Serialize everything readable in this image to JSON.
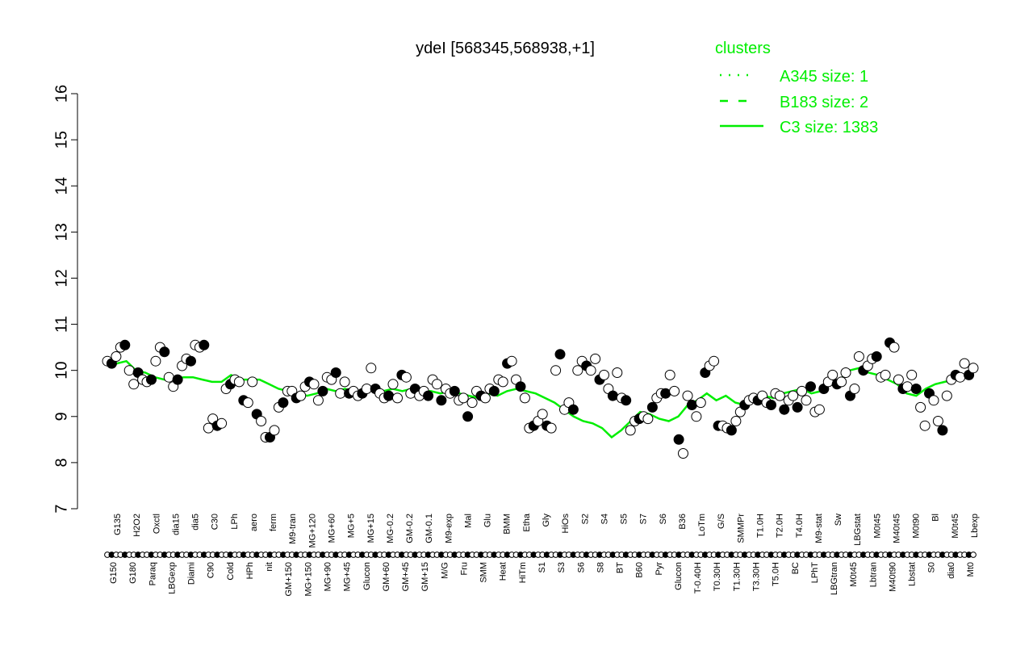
{
  "colors": {
    "background": "#ffffff",
    "axis": "#000000",
    "cluster_line": "#00ee00",
    "legend_text": "#00ee00",
    "point_fill_dark": "#000000",
    "point_fill_light": "#ffffff"
  },
  "chart_data": {
    "type": "line",
    "title": "ydeI [568345,568938,+1]",
    "ylim": [
      7,
      16
    ],
    "yticks": [
      "7",
      "8",
      "9",
      "10",
      "11",
      "12",
      "13",
      "14",
      "15",
      "16"
    ],
    "grid": false,
    "legend": {
      "position": "top-right",
      "title": "clusters",
      "entries": [
        {
          "label": "A345 size: 1",
          "style": "dotted"
        },
        {
          "label": "B183 size: 2",
          "style": "dashed"
        },
        {
          "label": "C3 size: 1383",
          "style": "solid"
        }
      ]
    },
    "xlabels_upper": [
      "G135",
      "H2O2",
      "Oxctl",
      "dia15",
      "dia5",
      "C30",
      "LPh",
      "aero",
      "ferm",
      "M9-tran",
      "MG+120",
      "MG+60",
      "MG+5",
      "MG+15",
      "MG-0.2",
      "GM-0.2",
      "GM-0.1",
      "M9-exp",
      "Mal",
      "Glu",
      "BMM",
      "Etha",
      "Gly",
      "HiOs",
      "S2",
      "S4",
      "S5",
      "S7",
      "S6",
      "B36",
      "LoTm",
      "G/S",
      "SMMPr",
      "T1.0H",
      "T2.0H",
      "T4.0H",
      "M9-stat",
      "Sw",
      "LBGstat",
      "M0t45",
      "M40t45",
      "M0t90",
      "Bl",
      "M0t45",
      "Lbexp"
    ],
    "xlabels_lower": [
      "G150",
      "G180",
      "Paraq",
      "LBGexp",
      "Diami",
      "C90",
      "Cold",
      "HPh",
      "nit",
      "GM+150",
      "MG+150",
      "MG+90",
      "MG+45",
      "Glucon",
      "GM+60",
      "GM+45",
      "GM+15",
      "M/G",
      "Fru",
      "SMM",
      "Heat",
      "HiTm",
      "S1",
      "S3",
      "S6",
      "S8",
      "BT",
      "B60",
      "Pyr",
      "Glucon",
      "T-0.40H",
      "T0.30H",
      "T1.30H",
      "T3.30H",
      "T5.0H",
      "BC",
      "LPhT",
      "LBGtran",
      "M0t45",
      "Lbtran",
      "M40t90",
      "Lbstat",
      "S0",
      "dia0",
      "Mt0"
    ],
    "series": [
      {
        "name": "",
        "style": "points",
        "values": [
          10.2,
          10.15,
          10.3,
          10.5,
          10.55,
          10.0,
          9.7,
          9.95,
          9.8,
          9.75,
          9.8,
          10.2,
          10.5,
          10.4,
          9.85,
          9.65,
          9.8,
          10.1,
          10.25,
          10.2,
          10.55,
          10.5,
          10.55,
          8.75,
          8.95,
          8.8,
          8.85,
          9.6,
          9.7,
          9.8,
          9.75,
          9.35,
          9.3,
          9.75,
          9.05,
          8.9,
          8.55,
          8.55,
          8.7,
          9.2,
          9.3,
          9.55,
          9.55,
          9.4,
          9.45,
          9.65,
          9.75,
          9.7,
          9.35,
          9.55,
          9.85,
          9.8,
          9.95,
          9.5,
          9.75,
          9.5,
          9.55,
          9.45,
          9.5,
          9.6,
          10.05,
          9.6,
          9.5,
          9.4,
          9.45,
          9.7,
          9.4,
          9.9,
          9.85,
          9.5,
          9.6,
          9.45,
          9.55,
          9.45,
          9.8,
          9.7,
          9.35,
          9.6,
          9.5,
          9.55,
          9.35,
          9.4,
          9.0,
          9.3,
          9.55,
          9.45,
          9.4,
          9.6,
          9.55,
          9.8,
          9.75,
          10.15,
          10.2,
          9.8,
          9.65,
          9.4,
          8.75,
          8.8,
          8.9,
          9.05,
          8.8,
          8.75,
          10.0,
          10.35,
          9.15,
          9.3,
          9.15,
          10.0,
          10.2,
          10.1,
          10.0,
          10.25,
          9.8,
          9.9,
          9.6,
          9.45,
          9.95,
          9.4,
          9.35,
          8.7,
          8.9,
          8.95,
          9.0,
          8.95,
          9.2,
          9.4,
          9.5,
          9.5,
          9.9,
          9.55,
          8.5,
          8.2,
          9.45,
          9.25,
          9.0,
          9.3,
          9.95,
          10.1,
          10.2,
          8.8,
          8.8,
          8.75,
          8.7,
          8.9,
          9.1,
          9.25,
          9.35,
          9.4,
          9.35,
          9.45,
          9.3,
          9.25,
          9.5,
          9.45,
          9.15,
          9.35,
          9.45,
          9.2,
          9.55,
          9.35,
          9.65,
          9.1,
          9.15,
          9.6,
          9.75,
          9.9,
          9.7,
          9.75,
          9.95,
          9.45,
          9.6,
          10.3,
          10.0,
          10.1,
          10.25,
          10.3,
          9.85,
          9.9,
          10.6,
          10.5,
          9.8,
          9.6,
          9.65,
          9.9,
          9.6,
          9.2,
          8.8,
          9.5,
          9.35,
          8.9,
          8.7,
          9.45,
          9.8,
          9.9,
          9.85,
          10.15,
          9.9,
          10.05
        ]
      },
      {
        "name": "C3 size: 1383",
        "style": "solid",
        "values": [
          10.15,
          10.15,
          10.2,
          10.0,
          9.95,
          9.85,
          9.8,
          9.8,
          9.85,
          9.85,
          9.8,
          9.75,
          9.75,
          9.9,
          9.8,
          9.8,
          9.8,
          9.7,
          9.6,
          9.55,
          9.5,
          9.45,
          9.5,
          9.6,
          9.55,
          9.6,
          9.5,
          9.6,
          9.55,
          9.55,
          9.6,
          9.55,
          9.6,
          9.55,
          9.55,
          9.5,
          9.55,
          9.5,
          9.45,
          9.4,
          9.5,
          9.45,
          9.55,
          9.6,
          9.55,
          9.5,
          9.4,
          9.3,
          9.15,
          9.0,
          8.9,
          8.85,
          8.75,
          8.55,
          8.7,
          8.9,
          9.1,
          9.05,
          8.95,
          8.9,
          9.0,
          9.25,
          9.35,
          9.5,
          9.35,
          9.45,
          9.3,
          9.25,
          9.4,
          9.45,
          9.4,
          9.5,
          9.55,
          9.6,
          9.5,
          9.55,
          9.7,
          9.8,
          10.0,
          10.05,
          9.95,
          9.9,
          9.8,
          9.7,
          9.5,
          9.45,
          9.6,
          9.7,
          9.75,
          9.8,
          9.85,
          9.9
        ]
      }
    ]
  }
}
